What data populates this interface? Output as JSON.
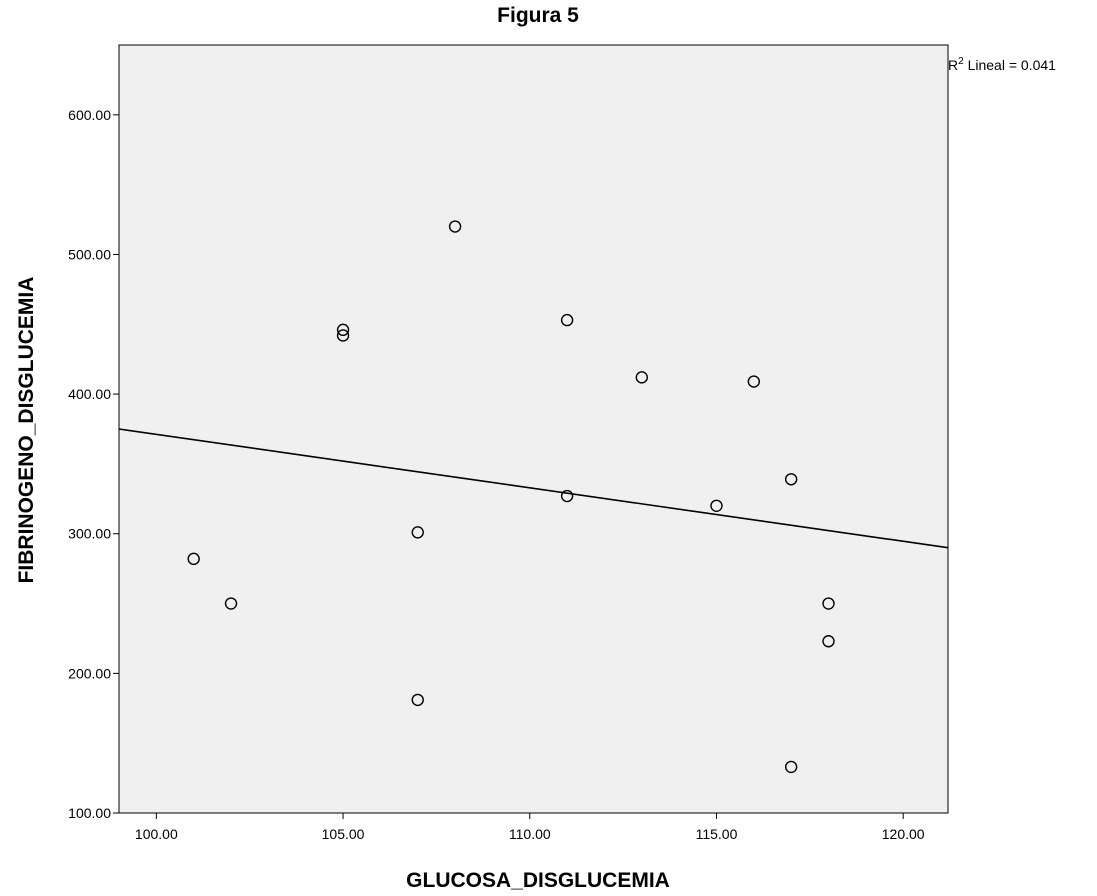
{
  "chart_data": {
    "type": "scatter",
    "title": "Figura 5",
    "xlabel": "GLUCOSA_DISGLUCEMIA",
    "ylabel": "FIBRINOGENO_DISGLUCEMIA",
    "xlim": [
      99.0,
      121.2
    ],
    "ylim": [
      100,
      650
    ],
    "x_ticks": [
      100,
      105,
      110,
      115,
      120
    ],
    "x_tick_labels": [
      "100.00",
      "105.00",
      "110.00",
      "115.00",
      "120.00"
    ],
    "y_ticks": [
      100,
      200,
      300,
      400,
      500,
      600
    ],
    "y_tick_labels": [
      "100.00",
      "200.00",
      "300.00",
      "400.00",
      "500.00",
      "600.00"
    ],
    "points": [
      {
        "x": 101,
        "y": 282
      },
      {
        "x": 102,
        "y": 250
      },
      {
        "x": 105,
        "y": 446
      },
      {
        "x": 105,
        "y": 442
      },
      {
        "x": 107,
        "y": 301
      },
      {
        "x": 107,
        "y": 181
      },
      {
        "x": 108,
        "y": 520
      },
      {
        "x": 111,
        "y": 453
      },
      {
        "x": 111,
        "y": 327
      },
      {
        "x": 113,
        "y": 412
      },
      {
        "x": 115,
        "y": 320
      },
      {
        "x": 116,
        "y": 409
      },
      {
        "x": 117,
        "y": 339
      },
      {
        "x": 117,
        "y": 133
      },
      {
        "x": 118,
        "y": 250
      },
      {
        "x": 118,
        "y": 223
      }
    ],
    "fit_line": {
      "x": [
        99.0,
        121.2
      ],
      "y": [
        375,
        290
      ]
    },
    "annotation": {
      "base": "R",
      "sup": "2",
      "rest": " Lineal = 0.041"
    },
    "grid": false,
    "colors": {
      "plot_background": "#f0f0f0",
      "marks": "#000000"
    }
  }
}
